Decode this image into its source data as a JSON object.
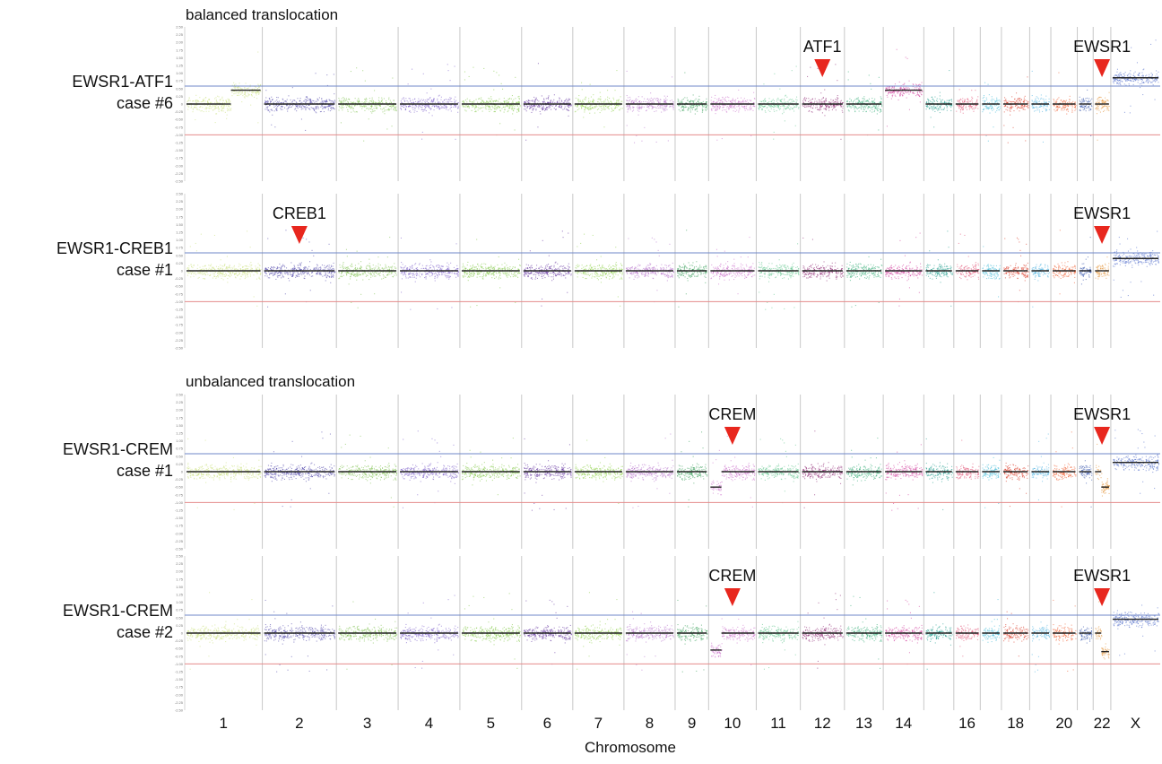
{
  "section_titles": [
    "balanced translocation",
    "unbalanced translocation"
  ],
  "chart_data": {
    "type": "scatter",
    "description_type": "copy-number log2 ratio scatter plot",
    "xlabel": "Chromosome",
    "x_tick_labels": [
      "1",
      "2",
      "3",
      "4",
      "5",
      "6",
      "7",
      "8",
      "9",
      "10",
      "11",
      "12",
      "13",
      "14",
      "16",
      "18",
      "20",
      "22",
      "X"
    ],
    "chromosomes": [
      "1",
      "2",
      "3",
      "4",
      "5",
      "6",
      "7",
      "8",
      "9",
      "10",
      "11",
      "12",
      "13",
      "14",
      "15",
      "16",
      "17",
      "18",
      "19",
      "20",
      "21",
      "22",
      "X"
    ],
    "y_tick_labels": [
      "2.50",
      "2.25",
      "2.00",
      "1.75",
      "1.50",
      "1.25",
      "1.00",
      "0.75",
      "0.50",
      "0.25",
      "0",
      "-0.25",
      "-0.50",
      "-0.75",
      "-1.00",
      "-1.25",
      "-1.50",
      "-1.75",
      "-2.00",
      "-2.25",
      "-2.50"
    ],
    "ylim": [
      -2.5,
      2.5
    ],
    "gain_threshold": 0.58,
    "loss_threshold": -1.0,
    "chromosome_colors": [
      "#c9e07a",
      "#4b3fa8",
      "#7cc04a",
      "#7a5bc8",
      "#7dc63f",
      "#5b2a9a",
      "#8fd14a",
      "#b36cc8",
      "#2f9a52",
      "#c86cc8",
      "#5cc48a",
      "#8a2070",
      "#2aa870",
      "#d03a9a",
      "#1a9a8a",
      "#e04a70",
      "#36b6d6",
      "#d8321e",
      "#4ab0e0",
      "#ee5a2a",
      "#2a4aa8",
      "#e08a2a",
      "#4a68c8"
    ],
    "panels": [
      {
        "label_line1": "EWSR1-ATF1",
        "label_line2": "case #6",
        "arrows": [
          {
            "label": "ATF1",
            "chrom": "12"
          },
          {
            "label": "EWSR1",
            "chrom": "22"
          }
        ],
        "segments": [
          {
            "chrom": "1",
            "start": 0.0,
            "end": 0.5,
            "value": 0.0
          },
          {
            "chrom": "1",
            "start": 0.6,
            "end": 1.0,
            "value": 0.45
          },
          {
            "chrom": "14",
            "start": 0.0,
            "end": 1.0,
            "value": 0.45
          },
          {
            "chrom": "22",
            "start": 0.0,
            "end": 0.3,
            "value": 0.0
          },
          {
            "chrom": "22",
            "start": 0.3,
            "end": 1.0,
            "value": 0.0
          },
          {
            "chrom": "X",
            "start": 0.0,
            "end": 1.0,
            "value": 0.85
          }
        ]
      },
      {
        "label_line1": "EWSR1-CREB1",
        "label_line2": "case #1",
        "arrows": [
          {
            "label": "CREB1",
            "chrom": "2"
          },
          {
            "label": "EWSR1",
            "chrom": "22"
          }
        ],
        "segments": [
          {
            "chrom": "X",
            "start": 0.0,
            "end": 1.0,
            "value": 0.4
          }
        ]
      },
      {
        "label_line1": "EWSR1-CREM",
        "label_line2": "case #1",
        "arrows": [
          {
            "label": "CREM",
            "chrom": "10"
          },
          {
            "label": "EWSR1",
            "chrom": "22"
          }
        ],
        "segments": [
          {
            "chrom": "10",
            "start": 0.0,
            "end": 0.25,
            "value": -0.5
          },
          {
            "chrom": "22",
            "start": 0.45,
            "end": 1.0,
            "value": -0.5
          },
          {
            "chrom": "X",
            "start": 0.0,
            "end": 1.0,
            "value": 0.3
          }
        ]
      },
      {
        "label_line1": "EWSR1-CREM",
        "label_line2": "case #2",
        "arrows": [
          {
            "label": "CREM",
            "chrom": "10"
          },
          {
            "label": "EWSR1",
            "chrom": "22"
          }
        ],
        "segments": [
          {
            "chrom": "10",
            "start": 0.0,
            "end": 0.25,
            "value": -0.55
          },
          {
            "chrom": "22",
            "start": 0.45,
            "end": 1.0,
            "value": -0.6
          },
          {
            "chrom": "X",
            "start": 0.0,
            "end": 1.0,
            "value": 0.45
          }
        ]
      }
    ]
  }
}
